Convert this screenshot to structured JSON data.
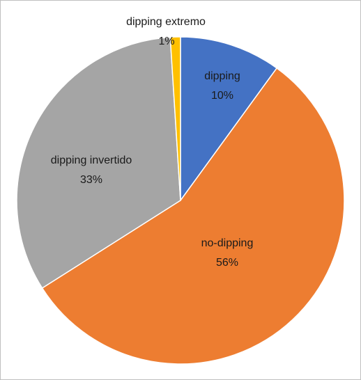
{
  "chart_data": {
    "type": "pie",
    "title": "",
    "slices": [
      {
        "label": "dipping",
        "value": 10,
        "value_label": "10%",
        "color": "#4472c4"
      },
      {
        "label": "no-dipping",
        "value": 56,
        "value_label": "56%",
        "color": "#ed7d31"
      },
      {
        "label": "dipping invertido",
        "value": 33,
        "value_label": "33%",
        "color": "#a5a5a5"
      },
      {
        "label": "dipping extremo",
        "value": 1,
        "value_label": "1%",
        "color": "#ffc000"
      }
    ],
    "start_angle": "12 o'clock",
    "direction": "clockwise",
    "legend": "none",
    "labels": "inside"
  }
}
